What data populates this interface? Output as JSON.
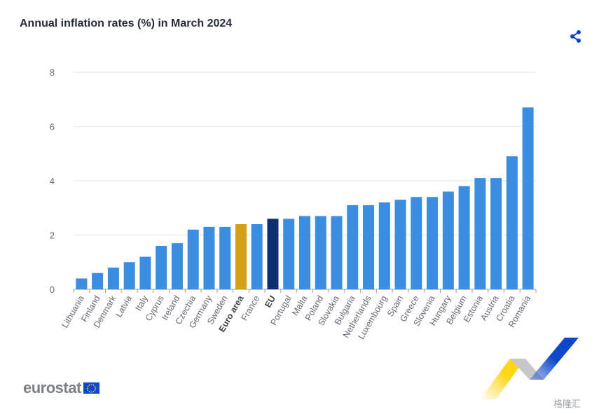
{
  "chart_data": {
    "type": "bar",
    "title": "Annual inflation rates (%) in March 2024",
    "categories": [
      "Lithuania",
      "Finland",
      "Denmark",
      "Latvia",
      "Italy",
      "Cyprus",
      "Ireland",
      "Czechia",
      "Germany",
      "Sweden",
      "Euro area",
      "France",
      "EU",
      "Portugal",
      "Malta",
      "Poland",
      "Slovakia",
      "Bulgaria",
      "Netherlands",
      "Luxembourg",
      "Spain",
      "Greece",
      "Slovenia",
      "Hungary",
      "Belgium",
      "Estonia",
      "Austria",
      "Croatia",
      "Romania"
    ],
    "values": [
      0.4,
      0.6,
      0.8,
      1.0,
      1.2,
      1.6,
      1.7,
      2.2,
      2.3,
      2.3,
      2.4,
      2.4,
      2.6,
      2.6,
      2.7,
      2.7,
      2.7,
      3.1,
      3.1,
      3.2,
      3.3,
      3.4,
      3.4,
      3.6,
      3.8,
      4.1,
      4.1,
      4.9,
      6.7
    ],
    "bold_categories": [
      "Euro area",
      "EU"
    ],
    "highlight_colors": {
      "Euro area": "#d4a017",
      "EU": "#0e2e6e"
    },
    "bar_color": "#3b8de0",
    "ylim": [
      0,
      8
    ],
    "yticks": [
      0,
      2,
      4,
      6,
      8
    ],
    "xlabel": "",
    "ylabel": "",
    "grid": true
  },
  "header": {
    "share_icon": "share-icon"
  },
  "footer": {
    "logo_text": "eurostat",
    "watermark": "格隆汇"
  }
}
